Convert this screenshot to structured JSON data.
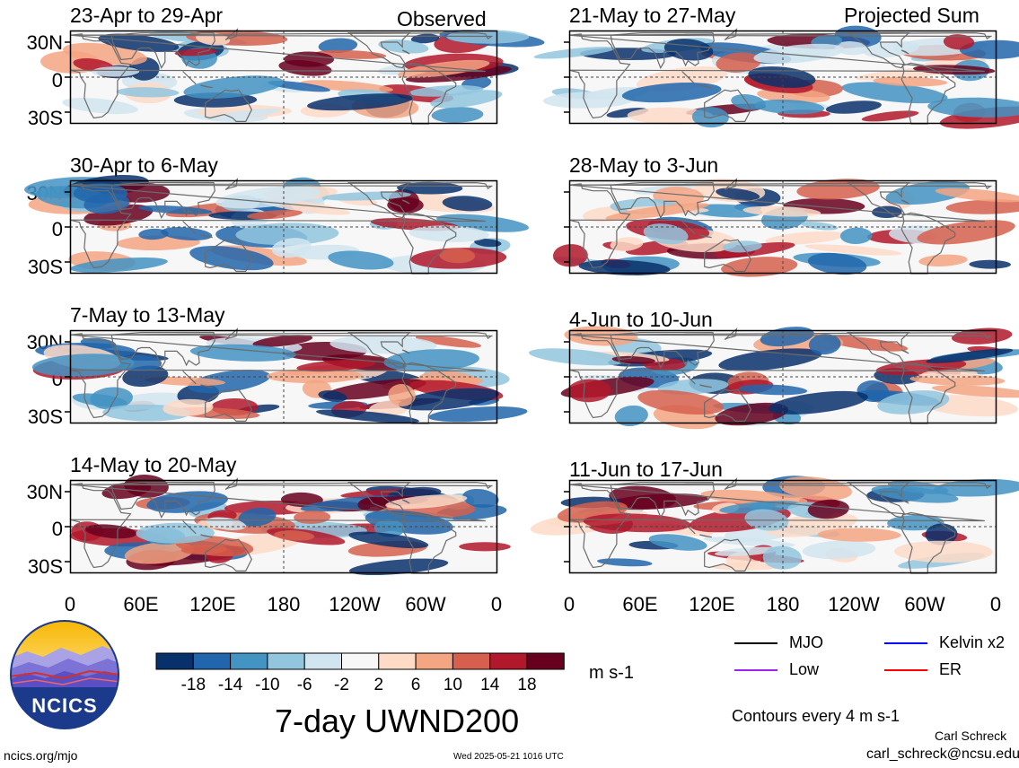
{
  "observed_label": "Observed",
  "projected_label": "Projected Sum",
  "left_panels": [
    {
      "title": "23-Apr to 29-Apr"
    },
    {
      "title": "30-Apr to 6-May"
    },
    {
      "title": "7-May to 13-May"
    },
    {
      "title": "14-May to 20-May"
    }
  ],
  "right_panels": [
    {
      "title": "21-May to 27-May"
    },
    {
      "title": "28-May to 3-Jun"
    },
    {
      "title": "4-Jun to 10-Jun"
    },
    {
      "title": "11-Jun to 17-Jun"
    }
  ],
  "lat_labels": [
    "30N",
    "0",
    "30S"
  ],
  "lon_labels": [
    "0",
    "60E",
    "120E",
    "180",
    "120W",
    "60W",
    "0"
  ],
  "colorbar": {
    "tick_labels": [
      "-18",
      "-14",
      "-10",
      "-6",
      "-2",
      "2",
      "6",
      "10",
      "14",
      "18"
    ],
    "colors": [
      "#08306b",
      "#2166ac",
      "#4393c3",
      "#92c5de",
      "#d1e5f0",
      "#f7f7f7",
      "#fddbc7",
      "#f4a582",
      "#d6604d",
      "#b2182b",
      "#67001f"
    ],
    "units": "m s-1"
  },
  "main_title": "7-day UWND200",
  "legend": [
    {
      "label": "MJO",
      "color": "#000000"
    },
    {
      "label": "Kelvin x2",
      "color": "#0000ff"
    },
    {
      "label": "Low",
      "color": "#a020f0"
    },
    {
      "label": "ER",
      "color": "#ff0000"
    }
  ],
  "contour_note": "Contours every 4 m s-1",
  "logo_text": "NCICS",
  "author": "Carl Schreck",
  "email": "carl_schreck@ncsu.edu",
  "website": "ncics.org/mjo",
  "timestamp": "Wed 2025-05-21 1016 UTC"
}
